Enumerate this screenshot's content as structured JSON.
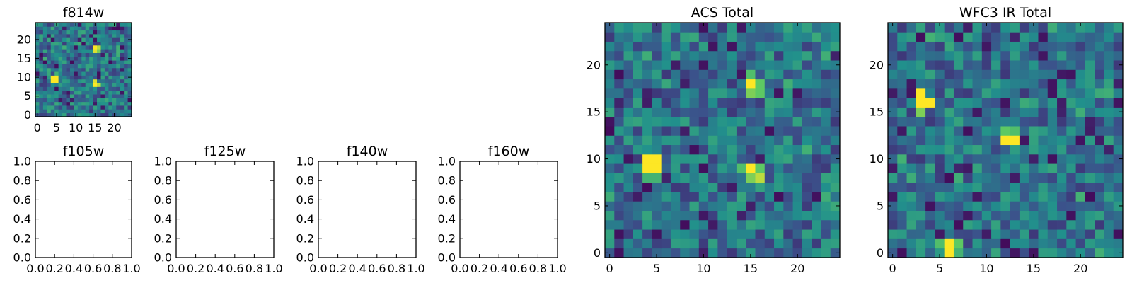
{
  "figure": {
    "background": "#ffffff"
  },
  "colormap": [
    "#440154",
    "#3b528b",
    "#21908c",
    "#5dc963",
    "#fde725"
  ],
  "chart_data": [
    {
      "id": "f814w",
      "type": "heatmap",
      "title": "f814w",
      "grid_size": 25,
      "xlim": [
        -0.5,
        24.5
      ],
      "ylim": [
        -0.5,
        24.5
      ],
      "xticks": [
        0,
        5,
        10,
        15,
        20
      ],
      "yticks": [
        0,
        5,
        10,
        15,
        20
      ],
      "noise_seed": 11,
      "hot_cells": [
        [
          4,
          9,
          1.0
        ],
        [
          5,
          9,
          1.0
        ],
        [
          4,
          10,
          1.0
        ],
        [
          5,
          10,
          1.0
        ],
        [
          15,
          18,
          1.0
        ],
        [
          16,
          18,
          0.9
        ],
        [
          15,
          17,
          0.95
        ],
        [
          16,
          17,
          0.8
        ],
        [
          15,
          8,
          1.0
        ],
        [
          16,
          8,
          0.9
        ],
        [
          15,
          9,
          0.95
        ]
      ]
    },
    {
      "id": "f105w",
      "type": "heatmap",
      "title": "f105w",
      "empty": true,
      "xlim": [
        0,
        1
      ],
      "ylim": [
        0,
        1
      ],
      "xticks": [
        "0.0",
        "0.2",
        "0.4",
        "0.6",
        "0.8",
        "1.0"
      ],
      "yticks": [
        "0.0",
        "0.2",
        "0.4",
        "0.6",
        "0.8",
        "1.0"
      ]
    },
    {
      "id": "f125w",
      "type": "heatmap",
      "title": "f125w",
      "empty": true,
      "xlim": [
        0,
        1
      ],
      "ylim": [
        0,
        1
      ],
      "xticks": [
        "0.0",
        "0.2",
        "0.4",
        "0.6",
        "0.8",
        "1.0"
      ],
      "yticks": [
        "0.0",
        "0.2",
        "0.4",
        "0.6",
        "0.8",
        "1.0"
      ]
    },
    {
      "id": "f140w",
      "type": "heatmap",
      "title": "f140w",
      "empty": true,
      "xlim": [
        0,
        1
      ],
      "ylim": [
        0,
        1
      ],
      "xticks": [
        "0.0",
        "0.2",
        "0.4",
        "0.6",
        "0.8",
        "1.0"
      ],
      "yticks": [
        "0.0",
        "0.2",
        "0.4",
        "0.6",
        "0.8",
        "1.0"
      ]
    },
    {
      "id": "f160w",
      "type": "heatmap",
      "title": "f160w",
      "empty": true,
      "xlim": [
        0,
        1
      ],
      "ylim": [
        0,
        1
      ],
      "xticks": [
        "0.0",
        "0.2",
        "0.4",
        "0.6",
        "0.8",
        "1.0"
      ],
      "yticks": [
        "0.0",
        "0.2",
        "0.4",
        "0.6",
        "0.8",
        "1.0"
      ]
    },
    {
      "id": "acs-total",
      "type": "heatmap",
      "title": "ACS Total",
      "grid_size": 25,
      "xlim": [
        -0.5,
        24.5
      ],
      "ylim": [
        -0.5,
        24.5
      ],
      "xticks": [
        0,
        5,
        10,
        15,
        20
      ],
      "yticks": [
        0,
        5,
        10,
        15,
        20
      ],
      "noise_seed": 37,
      "hot_cells": [
        [
          4,
          9,
          1.0
        ],
        [
          5,
          9,
          1.0
        ],
        [
          4,
          10,
          1.0
        ],
        [
          5,
          10,
          1.0
        ],
        [
          4,
          8,
          0.65
        ],
        [
          5,
          8,
          0.65
        ],
        [
          15,
          18,
          1.0
        ],
        [
          16,
          18,
          0.75
        ],
        [
          15,
          17,
          0.8
        ],
        [
          16,
          17,
          0.75
        ],
        [
          15,
          19,
          0.7
        ],
        [
          15,
          8,
          0.8
        ],
        [
          16,
          8,
          0.9
        ],
        [
          15,
          9,
          1.0
        ],
        [
          16,
          9,
          0.75
        ],
        [
          14,
          9,
          0.7
        ]
      ]
    },
    {
      "id": "wfc3-ir-total",
      "type": "heatmap",
      "title": "WFC3 IR Total",
      "grid_size": 25,
      "xlim": [
        -0.5,
        24.5
      ],
      "ylim": [
        -0.5,
        24.5
      ],
      "xticks": [
        0,
        5,
        10,
        15,
        20
      ],
      "yticks": [
        0,
        5,
        10,
        15,
        20
      ],
      "noise_seed": 73,
      "hot_cells": [
        [
          3,
          17,
          1.0
        ],
        [
          3,
          16,
          1.0
        ],
        [
          4,
          16,
          1.0
        ],
        [
          3,
          15,
          0.8
        ],
        [
          12,
          12,
          1.0
        ],
        [
          13,
          12,
          1.0
        ],
        [
          12,
          13,
          0.75
        ],
        [
          13,
          13,
          0.7
        ],
        [
          6,
          1,
          1.0
        ],
        [
          6,
          0,
          1.0
        ],
        [
          7,
          1,
          0.75
        ],
        [
          5,
          1,
          0.7
        ],
        [
          7,
          0,
          0.65
        ]
      ]
    }
  ]
}
